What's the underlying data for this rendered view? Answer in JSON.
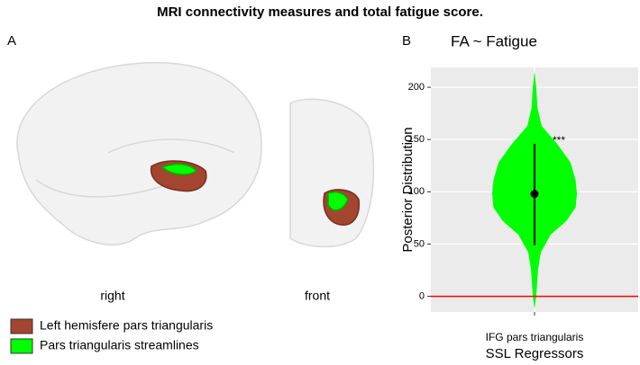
{
  "figure_title": "MRI connectivity measures and total fatigue score.",
  "panels": [
    "A",
    "B"
  ],
  "views": [
    "right",
    "front"
  ],
  "legend": [
    {
      "name": "Left hemisfere pars triangularis",
      "color": "#a3452f"
    },
    {
      "name": "Pars triangularis streamlines",
      "color": "#00ff00"
    }
  ],
  "chart_data": {
    "type": "violin",
    "title": "FA ~ Fatigue",
    "x_label": "SSL Regressors",
    "y_label": "Posterior Distribution",
    "categories": [
      "IFG pars triangularis"
    ],
    "ylim": [
      -15,
      219
    ],
    "yticks": [
      0,
      50,
      100,
      150,
      200
    ],
    "grid": true,
    "reference_line": 0,
    "reference_color": "#ff0000",
    "violin": {
      "color": "#00ff00",
      "y": [
        -12,
        0,
        25,
        42,
        59,
        72,
        85,
        98,
        111,
        128,
        146,
        163,
        180,
        200,
        215
      ],
      "density": [
        0,
        0.04,
        0.08,
        0.15,
        0.38,
        0.75,
        0.97,
        1.0,
        0.97,
        0.85,
        0.53,
        0.17,
        0.07,
        0.04,
        0
      ]
    },
    "point": 98,
    "interval": [
      49,
      146
    ],
    "annotation": "***"
  }
}
